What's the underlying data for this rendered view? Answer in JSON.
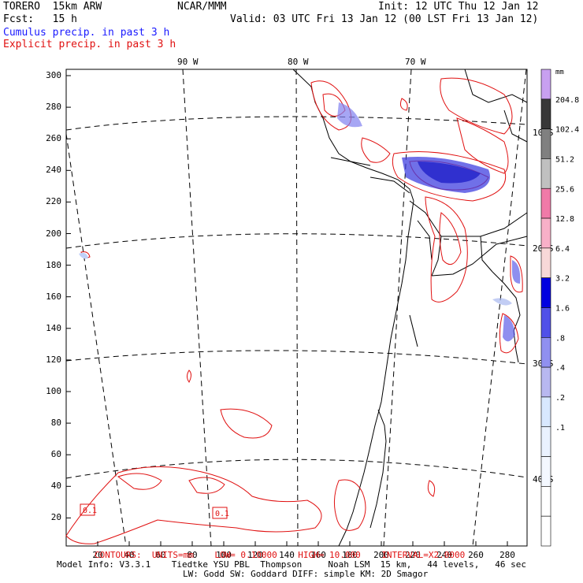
{
  "header": {
    "model": "TORERO  15km ARW",
    "fcst": "Fcst:   15 h",
    "center": "NCAR/MMM",
    "init": "Init: 12 UTC Thu 12 Jan 12",
    "valid": "Valid: 03 UTC Fri 13 Jan 12 (00 LST Fri 13 Jan 12)",
    "cumulus_label": "Cumulus precip. in past 3 h",
    "explicit_label": "Explicit precip. in past 3 h"
  },
  "axes": {
    "y_ticks": [
      "300",
      "280",
      "260",
      "240",
      "220",
      "200",
      "180",
      "160",
      "140",
      "120",
      "100",
      "80",
      "60",
      "40",
      "20"
    ],
    "x_ticks": [
      "20",
      "40",
      "60",
      "80",
      "100",
      "120",
      "140",
      "160",
      "180",
      "200",
      "220",
      "240",
      "260",
      "280"
    ],
    "lon_labels": [
      "90 W",
      "80 W",
      "70 W"
    ],
    "lat_labels": [
      "10 S",
      "20 S",
      "30 S",
      "40 S"
    ]
  },
  "contour_labels": [
    "0.1",
    "0.1"
  ],
  "footer": {
    "contours_line": "CONTOURS:  UNITS=mm    LOW= 0.10000    HIGH= 10.000    INTERVAL=X2.0000",
    "info_line1": "Model Info: V3.3.1    Tiedtke YSU PBL  Thompson     Noah LSM  15 km,   44 levels,   46 sec",
    "info_line2": "LW: Godd SW: Goddard DIFF: simple KM: 2D Smagor"
  },
  "colorbar": {
    "unit": "mm",
    "labels": [
      "204.8",
      "102.4",
      "51.2",
      "25.6",
      "12.8",
      "6.4",
      "3.2",
      "1.6",
      ".8",
      ".4",
      ".2",
      ".1"
    ],
    "colors": [
      "#c8a0f0",
      "#383838",
      "#808080",
      "#c0c0c0",
      "#f07aa8",
      "#f8b0c8",
      "#f8d8d8",
      "#0000e0",
      "#5050e8",
      "#9090f0",
      "#b8b8f0",
      "#d8e8ff",
      "#eaf2ff",
      "#f4f8ff",
      "#ffffff",
      "#ffffff"
    ]
  }
}
